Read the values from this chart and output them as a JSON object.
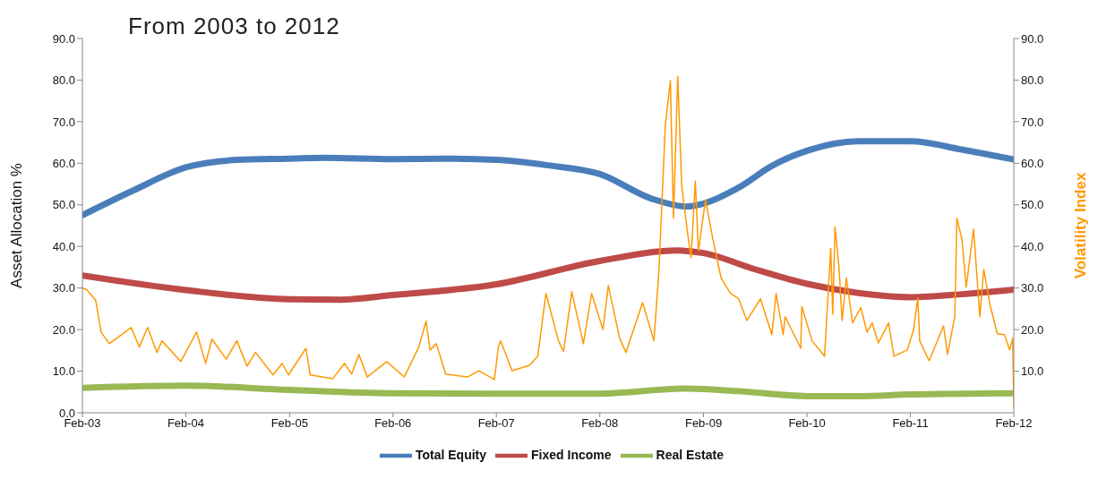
{
  "chart_data": {
    "type": "line",
    "title": "From 2003 to 2012",
    "ylabel": "Asset Allocation  %",
    "y2label": "Volatility Index",
    "xlim": [
      "2003-02-01",
      "2012-02-01"
    ],
    "xticks": [
      {
        "value": "2003-02-01",
        "label": "Feb-03"
      },
      {
        "value": "2004-02-01",
        "label": "Feb-04"
      },
      {
        "value": "2005-02-01",
        "label": "Feb-05"
      },
      {
        "value": "2006-02-01",
        "label": "Feb-06"
      },
      {
        "value": "2007-02-01",
        "label": "Feb-07"
      },
      {
        "value": "2008-02-01",
        "label": "Feb-08"
      },
      {
        "value": "2009-02-01",
        "label": "Feb-09"
      },
      {
        "value": "2010-02-01",
        "label": "Feb-10"
      },
      {
        "value": "2011-02-01",
        "label": "Feb-11"
      },
      {
        "value": "2012-02-01",
        "label": "Feb-12"
      }
    ],
    "ylim": [
      0,
      90
    ],
    "yticks": [
      {
        "value": 0,
        "label": "0.0"
      },
      {
        "value": 10,
        "label": "10.0"
      },
      {
        "value": 20,
        "label": "20.0"
      },
      {
        "value": 30,
        "label": "30.0"
      },
      {
        "value": 40,
        "label": "40.0"
      },
      {
        "value": 50,
        "label": "50.0"
      },
      {
        "value": 60,
        "label": "60.0"
      },
      {
        "value": 70,
        "label": "70.0"
      },
      {
        "value": 80,
        "label": "80.0"
      },
      {
        "value": 90,
        "label": "90.0"
      }
    ],
    "y2lim": [
      0,
      90
    ],
    "y2ticks": [
      {
        "value": 10,
        "label": "10.0"
      },
      {
        "value": 20,
        "label": "20.0"
      },
      {
        "value": 30,
        "label": "30.0"
      },
      {
        "value": 40,
        "label": "40.0"
      },
      {
        "value": 50,
        "label": "50.0"
      },
      {
        "value": 60,
        "label": "60.0"
      },
      {
        "value": 70,
        "label": "70.0"
      },
      {
        "value": 80,
        "label": "80.0"
      },
      {
        "value": 90,
        "label": "90.0"
      }
    ],
    "grid": false,
    "legend": "bottom",
    "marker": "none",
    "line_style": "solid",
    "series": [
      {
        "name": "Total Equity",
        "color": "#4a7ebb",
        "x": [
          "2003-02",
          "2003-08",
          "2004-02",
          "2004-08",
          "2005-02",
          "2005-06",
          "2006-02",
          "2006-08",
          "2007-02",
          "2007-08",
          "2008-02",
          "2008-08",
          "2008-12",
          "2009-06",
          "2009-10",
          "2010-02",
          "2010-08",
          "2011-02",
          "2011-08",
          "2012-02"
        ],
        "values": [
          47.5,
          53.5,
          59,
          60.8,
          61.1,
          61.3,
          61,
          61.1,
          60.8,
          59.5,
          57.4,
          51.5,
          49.6,
          54,
          59.4,
          63,
          65.3,
          65.3,
          63.3,
          60.9
        ]
      },
      {
        "name": "Fixed Income",
        "color": "#be4b48",
        "x": [
          "2003-02",
          "2004-02",
          "2005-02",
          "2005-08",
          "2006-02",
          "2007-02",
          "2008-02",
          "2008-11",
          "2009-02",
          "2009-08",
          "2010-02",
          "2010-08",
          "2011-02",
          "2011-08",
          "2012-02"
        ],
        "values": [
          33,
          29.5,
          27.3,
          27.2,
          28.3,
          30.9,
          36.5,
          39,
          38.4,
          34.5,
          31,
          28.8,
          27.8,
          28.5,
          29.6
        ]
      },
      {
        "name": "Real Estate",
        "color": "#98b954",
        "x": [
          "2003-02",
          "2004-02",
          "2005-02",
          "2006-02",
          "2007-02",
          "2008-02",
          "2008-12",
          "2009-06",
          "2010-02",
          "2010-08",
          "2011-02",
          "2012-02"
        ],
        "values": [
          6,
          6.5,
          5.5,
          4.7,
          4.6,
          4.6,
          5.8,
          5.2,
          4,
          4,
          4.4,
          4.7
        ]
      },
      {
        "color": "#ff9900",
        "axis": "y2",
        "x": [
          "2003-02-01",
          "2003-02-16",
          "2003-03-20",
          "2003-04-08",
          "2003-05-07",
          "2003-07-23",
          "2003-08-21",
          "2003-09-19",
          "2003-10-22",
          "2003-11-09",
          "2004-01-14",
          "2004-03-10",
          "2004-04-11",
          "2004-05-03",
          "2004-06-23",
          "2004-07-30",
          "2004-09-04",
          "2004-10-04",
          "2004-12-05",
          "2005-01-06",
          "2005-01-28",
          "2005-03-31",
          "2005-04-15",
          "2005-07-04",
          "2005-08-14",
          "2005-09-08",
          "2005-10-04",
          "2005-11-02",
          "2006-01-10",
          "2006-03-13",
          "2006-05-03",
          "2006-05-29",
          "2006-06-12",
          "2006-07-04",
          "2006-08-06",
          "2006-10-22",
          "2006-12-01",
          "2007-01-25",
          "2007-02-08",
          "2007-02-16",
          "2007-03-28",
          "2007-05-29",
          "2007-06-27",
          "2007-07-26",
          "2007-09-08",
          "2007-09-26",
          "2007-10-25",
          "2007-12-05",
          "2008-01-03",
          "2008-02-12",
          "2008-03-02",
          "2008-04-11",
          "2008-05-03",
          "2008-07-01",
          "2008-08-10",
          "2008-08-28",
          "2008-09-19",
          "2008-10-07",
          "2008-10-18",
          "2008-11-02",
          "2008-11-16",
          "2008-12-08",
          "2008-12-19",
          "2009-01-03",
          "2009-01-14",
          "2009-02-08",
          "2009-03-06",
          "2009-04-04",
          "2009-05-07",
          "2009-06-05",
          "2009-07-04",
          "2009-08-21",
          "2009-09-30",
          "2009-10-15",
          "2009-11-09",
          "2009-11-16",
          "2010-01-10",
          "2010-01-14",
          "2010-02-19",
          "2010-04-04",
          "2010-04-26",
          "2010-05-03",
          "2010-05-11",
          "2010-05-25",
          "2010-06-05",
          "2010-06-20",
          "2010-07-12",
          "2010-08-10",
          "2010-09-01",
          "2010-09-19",
          "2010-10-11",
          "2010-11-16",
          "2010-12-05",
          "2011-01-21",
          "2011-02-12",
          "2011-02-27",
          "2011-03-06",
          "2011-04-08",
          "2011-05-29",
          "2011-06-12",
          "2011-07-08",
          "2011-07-15",
          "2011-08-02",
          "2011-08-17",
          "2011-09-12",
          "2011-10-04",
          "2011-10-18",
          "2011-11-09",
          "2011-12-05",
          "2011-12-30",
          "2012-01-17",
          "2012-01-28",
          "2012-02-01"
        ],
        "values": [
          30,
          29.6,
          27,
          19.4,
          16.6,
          20.5,
          15.8,
          20.5,
          14.5,
          17.3,
          12.3,
          19.4,
          11.9,
          17.7,
          12.9,
          17.3,
          11.2,
          14.5,
          9.1,
          11.9,
          9.1,
          15.5,
          9.1,
          8.2,
          11.9,
          9.3,
          14,
          8.6,
          12.3,
          8.6,
          15.8,
          22,
          15.1,
          16.6,
          9.3,
          8.6,
          10.1,
          8,
          15.8,
          17.3,
          10.1,
          11.4,
          13.6,
          28.7,
          17.3,
          14.7,
          29.1,
          16.6,
          28.7,
          20,
          30.6,
          17.9,
          14.5,
          26.5,
          17.3,
          34.5,
          69,
          79.9,
          46.8,
          80.9,
          54.6,
          42.5,
          37.3,
          55.7,
          38.9,
          51.2,
          41.7,
          32.4,
          28.7,
          27.4,
          22.2,
          27.4,
          18.8,
          28.7,
          18.8,
          23.1,
          15.5,
          25.5,
          17.3,
          13.6,
          39.5,
          23.7,
          44.7,
          35,
          22.2,
          32.4,
          21.6,
          25.3,
          19.4,
          21.6,
          16.8,
          21.6,
          13.6,
          15.1,
          19.9,
          27.6,
          17.3,
          12.5,
          20.9,
          14,
          23.3,
          46.8,
          41.7,
          30.2,
          44.2,
          23.1,
          34.5,
          25.9,
          19,
          18.8,
          15.1,
          17.9,
          1.5
        ]
      }
    ]
  }
}
